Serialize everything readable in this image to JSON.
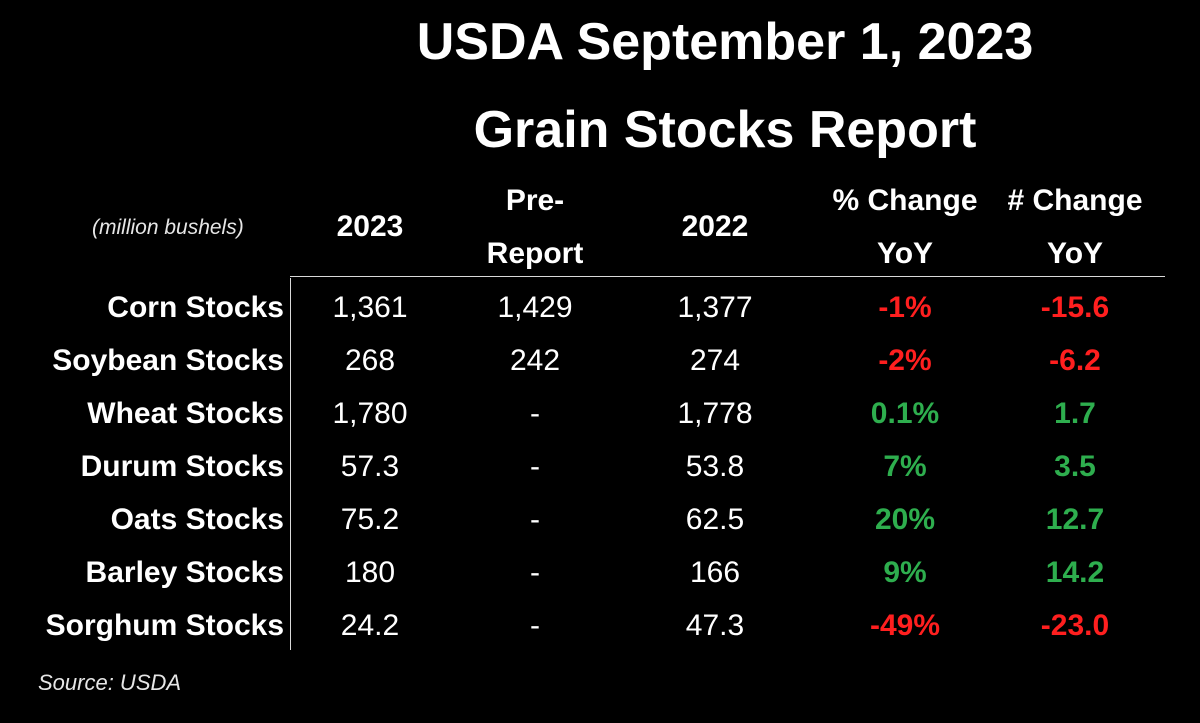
{
  "title": {
    "line1": "USDA September 1, 2023",
    "line2": "Grain Stocks Report"
  },
  "units_note": "(million bushels)",
  "headers": {
    "col_2023": "2023",
    "col_pre_line1": "Pre-",
    "col_pre_line2": "Report",
    "col_2022": "2022",
    "col_pct_line1": "% Change",
    "col_pct_line2": "YoY",
    "col_num_line1": "# Change",
    "col_num_line2": "YoY"
  },
  "colors": {
    "background": "#000000",
    "text": "#ffffff",
    "positive": "#2eae4e",
    "negative": "#ff1f1f"
  },
  "rows": [
    {
      "label": "Corn Stocks",
      "v2023": "1,361",
      "pre": "1,429",
      "v2022": "1,377",
      "pct": "-1%",
      "num": "-15.6",
      "direction": "negative"
    },
    {
      "label": "Soybean Stocks",
      "v2023": "268",
      "pre": "242",
      "v2022": "274",
      "pct": "-2%",
      "num": "-6.2",
      "direction": "negative"
    },
    {
      "label": "Wheat Stocks",
      "v2023": "1,780",
      "pre": "-",
      "v2022": "1,778",
      "pct": "0.1%",
      "num": "1.7",
      "direction": "positive"
    },
    {
      "label": "Durum Stocks",
      "v2023": "57.3",
      "pre": "-",
      "v2022": "53.8",
      "pct": "7%",
      "num": "3.5",
      "direction": "positive"
    },
    {
      "label": "Oats Stocks",
      "v2023": "75.2",
      "pre": "-",
      "v2022": "62.5",
      "pct": "20%",
      "num": "12.7",
      "direction": "positive"
    },
    {
      "label": "Barley Stocks",
      "v2023": "180",
      "pre": "-",
      "v2022": "166",
      "pct": "9%",
      "num": "14.2",
      "direction": "positive"
    },
    {
      "label": "Sorghum Stocks",
      "v2023": "24.2",
      "pre": "-",
      "v2022": "47.3",
      "pct": "-49%",
      "num": "-23.0",
      "direction": "negative"
    }
  ],
  "source": "Source: USDA"
}
